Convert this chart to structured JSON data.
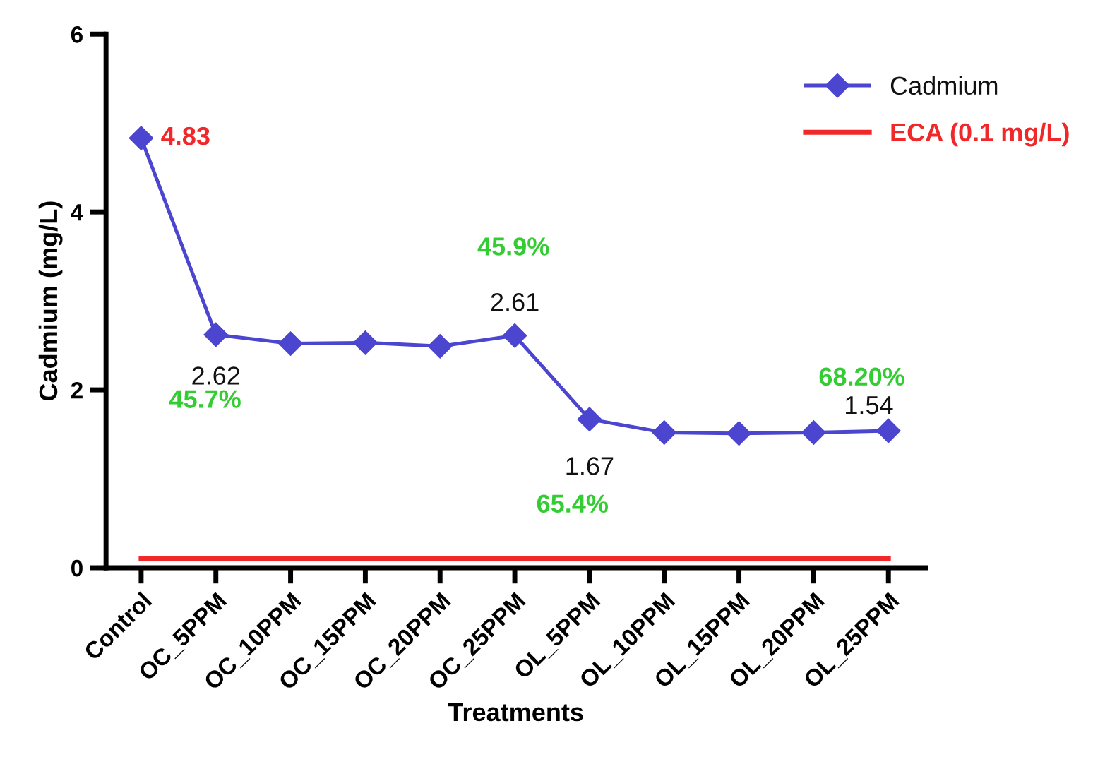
{
  "chart_data": {
    "type": "line",
    "xlabel": "Treatments",
    "ylabel": "Cadmium (mg/L)",
    "categories": [
      "Control",
      "OC_5PPM",
      "OC_10PPM",
      "OC_15PPM",
      "OC_20PPM",
      "OC_25PPM",
      "OL_5PPM",
      "OL_10PPM",
      "OL_15PPM",
      "OL_20PPM",
      "OL_25PPM"
    ],
    "series": [
      {
        "name": "Cadmium",
        "color": "#4b45d0",
        "marker": "diamond",
        "values": [
          4.83,
          2.62,
          2.52,
          2.53,
          2.49,
          2.61,
          1.67,
          1.52,
          1.51,
          1.52,
          1.54
        ]
      },
      {
        "name": "ECA (0.1 mg/L)",
        "color": "#f0282a",
        "marker": "none",
        "values": [
          0.1,
          0.1,
          0.1,
          0.1,
          0.1,
          0.1,
          0.1,
          0.1,
          0.1,
          0.1,
          0.1
        ]
      }
    ],
    "ylim": [
      0,
      6
    ],
    "yticks": [
      0,
      2,
      4,
      6
    ],
    "grid": false,
    "legend": "top right",
    "annotations": [
      {
        "text": "4.83",
        "x": "Control",
        "y": 4.83
      },
      {
        "text": "2.62",
        "x": "OC_5PPM",
        "y": 2.62
      },
      "45.7%",
      {
        "text": "2.61",
        "x": "OC_25PPM",
        "y": 2.61
      },
      "45.9%",
      {
        "text": "1.67",
        "x": "OL_5PPM",
        "y": 1.67
      },
      "65.4%",
      {
        "text": "1.54",
        "x": "OL_25PPM",
        "y": 1.54
      },
      "68.20%"
    ]
  }
}
